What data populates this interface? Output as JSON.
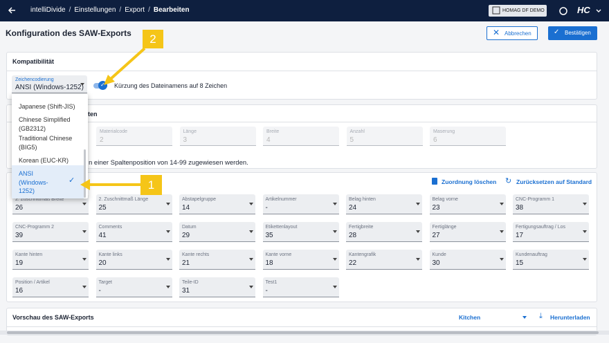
{
  "topbar": {
    "breadcrumb": [
      "intelliDivide",
      "Einstellungen",
      "Export",
      "Bearbeiten"
    ],
    "separator": "/",
    "tenant": "HOMAG DF DEMO",
    "user": "HC"
  },
  "header": {
    "title": "Konfiguration des SAW-Exports",
    "cancel": "Abbrechen",
    "confirm": "Bestätigen"
  },
  "compat": {
    "title": "Kompatibilität",
    "encoding_label": "Zeichencodierung",
    "encoding_value": "ANSI (Windows-1252)",
    "toggle_label": "Kürzung des Dateinamens auf 8 Zeichen",
    "options": [
      "Japanese (Shift-JIS)",
      "Chinese Simplified (GB2312)",
      "Traditional Chinese (BIG5)",
      "Korean (EUC-KR)",
      "ANSI (Windows-1252)"
    ]
  },
  "fixed": {
    "title_fragment": "ten",
    "hint_fragment": "n einer Spaltenposition von 14-99 zugewiesen werden.",
    "fields": [
      {
        "label": "Materialcode",
        "value": "2"
      },
      {
        "label": "Länge",
        "value": "3"
      },
      {
        "label": "Breite",
        "value": "4"
      },
      {
        "label": "Anzahl",
        "value": "5"
      },
      {
        "label": "Maserung",
        "value": "6"
      }
    ]
  },
  "mapping": {
    "clear": "Zuordnung löschen",
    "reset": "Zurücksetzen auf Standard",
    "fields": [
      {
        "label": "2. Zuschnittmaß Breite",
        "value": "26"
      },
      {
        "label": "2. Zuschnittmaß Länge",
        "value": "25"
      },
      {
        "label": "Abstapelgruppe",
        "value": "14"
      },
      {
        "label": "Artikelnummer",
        "value": "-"
      },
      {
        "label": "Belag hinten",
        "value": "24"
      },
      {
        "label": "Belag vorne",
        "value": "23"
      },
      {
        "label": "CNC-Programm 1",
        "value": "38"
      },
      {
        "label": "CNC-Programm 2",
        "value": "39"
      },
      {
        "label": "Comments",
        "value": "41"
      },
      {
        "label": "Datum",
        "value": "29"
      },
      {
        "label": "Etikettenlayout",
        "value": "35"
      },
      {
        "label": "Fertigbreite",
        "value": "28"
      },
      {
        "label": "Fertiglänge",
        "value": "27"
      },
      {
        "label": "Fertigungsauftrag / Los",
        "value": "17"
      },
      {
        "label": "Kante hinten",
        "value": "19"
      },
      {
        "label": "Kante links",
        "value": "20"
      },
      {
        "label": "Kante rechts",
        "value": "21"
      },
      {
        "label": "Kante vorne",
        "value": "18"
      },
      {
        "label": "Kantengrafik",
        "value": "22"
      },
      {
        "label": "Kunde",
        "value": "30"
      },
      {
        "label": "Kundenauftrag",
        "value": "15"
      },
      {
        "label": "Position / Artikel",
        "value": "16"
      },
      {
        "label": "Target",
        "value": "-"
      },
      {
        "label": "Teile-ID",
        "value": "31"
      },
      {
        "label": "Test1",
        "value": "-"
      }
    ]
  },
  "preview": {
    "title": "Vorschau des SAW-Exports",
    "select": "Kitchen",
    "download": "Herunterladen"
  },
  "annotations": [
    "1",
    "2"
  ]
}
